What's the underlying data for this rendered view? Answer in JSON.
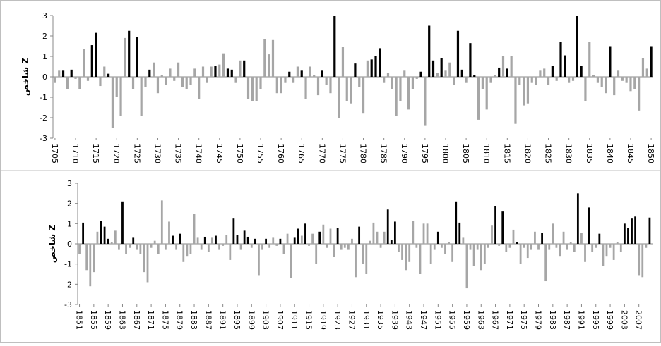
{
  "chart_data": [
    {
      "type": "bar",
      "ylabel": "شاخص Z",
      "x": [
        1705,
        1706,
        1707,
        1708,
        1709,
        1710,
        1711,
        1712,
        1713,
        1714,
        1715,
        1716,
        1717,
        1718,
        1719,
        1720,
        1721,
        1722,
        1723,
        1724,
        1725,
        1726,
        1727,
        1728,
        1729,
        1730,
        1731,
        1732,
        1733,
        1734,
        1735,
        1736,
        1737,
        1738,
        1739,
        1740,
        1741,
        1742,
        1743,
        1744,
        1745,
        1746,
        1747,
        1748,
        1749,
        1750,
        1751,
        1752,
        1753,
        1754,
        1755,
        1756,
        1757,
        1758,
        1759,
        1760,
        1761,
        1762,
        1763,
        1764,
        1765,
        1766,
        1767,
        1768,
        1769,
        1770,
        1771,
        1772,
        1773,
        1774,
        1775,
        1776,
        1777,
        1778,
        1779,
        1780,
        1781,
        1782,
        1783,
        1784,
        1785,
        1786,
        1787,
        1788,
        1789,
        1790,
        1791,
        1792,
        1793,
        1794,
        1795,
        1796,
        1797,
        1798,
        1799,
        1800,
        1801,
        1802,
        1803,
        1804,
        1805,
        1806,
        1807,
        1808,
        1809,
        1810,
        1811,
        1812,
        1813,
        1814,
        1815,
        1816,
        1817,
        1818,
        1819,
        1820,
        1821,
        1822,
        1823,
        1824,
        1825,
        1826,
        1827,
        1828,
        1829,
        1830,
        1831,
        1832,
        1833,
        1834,
        1835,
        1836,
        1837,
        1838,
        1839,
        1840,
        1841,
        1842,
        1843,
        1844,
        1845,
        1846,
        1847,
        1848,
        1849,
        1850
      ],
      "values": [
        -0.3,
        0.3,
        0.3,
        -0.6,
        0.35,
        -0.1,
        -0.6,
        1.35,
        -0.2,
        1.55,
        2.15,
        -0.45,
        0.5,
        0.15,
        -2.5,
        -1.0,
        -1.9,
        1.9,
        2.25,
        -0.6,
        1.95,
        -1.9,
        -0.5,
        0.35,
        0.7,
        -0.8,
        0.1,
        -0.4,
        0.4,
        -0.2,
        0.7,
        -0.5,
        -0.6,
        -0.4,
        0.4,
        -1.1,
        0.5,
        -0.3,
        0.5,
        0.55,
        0.6,
        1.15,
        0.4,
        0.35,
        -0.3,
        0.8,
        0.8,
        -1.1,
        -1.2,
        -1.2,
        -0.6,
        1.85,
        1.1,
        1.8,
        -0.8,
        -0.8,
        -0.3,
        0.25,
        -0.3,
        0.5,
        0.3,
        -1.1,
        0.5,
        0.1,
        -0.9,
        0.3,
        -0.4,
        -0.8,
        3.0,
        -2.0,
        1.45,
        -1.2,
        -1.3,
        0.65,
        -0.5,
        -1.8,
        0.8,
        0.85,
        1.0,
        1.4,
        -0.3,
        0.2,
        -0.6,
        -1.9,
        -1.2,
        0.3,
        -1.6,
        -0.6,
        -0.1,
        0.25,
        -2.4,
        2.5,
        0.8,
        0.2,
        0.9,
        0.3,
        0.7,
        -0.4,
        2.25,
        0.35,
        -0.3,
        1.65,
        0.1,
        -2.1,
        -0.6,
        -1.6,
        -0.3,
        0.1,
        0.45,
        1.0,
        0.4,
        1.0,
        -2.3,
        -0.4,
        -1.4,
        -1.3,
        -0.3,
        -0.4,
        0.3,
        0.4,
        -0.4,
        0.55,
        -0.2,
        1.7,
        1.05,
        -0.3,
        -0.2,
        3.0,
        0.55,
        -1.2,
        1.7,
        0.1,
        -0.3,
        -0.5,
        -0.8,
        1.5,
        -0.9,
        0.3,
        -0.2,
        -0.3,
        -0.7,
        -0.6,
        -1.65,
        0.9,
        0.4,
        1.5
      ],
      "colors": [
        "#a6a6a6",
        "#a6a6a6",
        "#000000",
        "#a6a6a6",
        "#000000",
        "#a6a6a6",
        "#a6a6a6",
        "#a6a6a6",
        "#a6a6a6",
        "#000000",
        "#000000",
        "#a6a6a6",
        "#a6a6a6",
        "#000000",
        "#a6a6a6",
        "#a6a6a6",
        "#a6a6a6",
        "#a6a6a6",
        "#000000",
        "#a6a6a6",
        "#000000",
        "#a6a6a6",
        "#a6a6a6",
        "#000000",
        "#a6a6a6",
        "#a6a6a6",
        "#a6a6a6",
        "#a6a6a6",
        "#a6a6a6",
        "#a6a6a6",
        "#a6a6a6",
        "#a6a6a6",
        "#a6a6a6",
        "#a6a6a6",
        "#a6a6a6",
        "#a6a6a6",
        "#a6a6a6",
        "#a6a6a6",
        "#a6a6a6",
        "#000000",
        "#a6a6a6",
        "#a6a6a6",
        "#000000",
        "#000000",
        "#a6a6a6",
        "#a6a6a6",
        "#000000",
        "#a6a6a6",
        "#a6a6a6",
        "#a6a6a6",
        "#a6a6a6",
        "#a6a6a6",
        "#a6a6a6",
        "#a6a6a6",
        "#a6a6a6",
        "#a6a6a6",
        "#a6a6a6",
        "#000000",
        "#a6a6a6",
        "#a6a6a6",
        "#000000",
        "#a6a6a6",
        "#a6a6a6",
        "#a6a6a6",
        "#a6a6a6",
        "#000000",
        "#a6a6a6",
        "#a6a6a6",
        "#000000",
        "#a6a6a6",
        "#a6a6a6",
        "#a6a6a6",
        "#a6a6a6",
        "#000000",
        "#a6a6a6",
        "#a6a6a6",
        "#a6a6a6",
        "#000000",
        "#000000",
        "#000000",
        "#a6a6a6",
        "#a6a6a6",
        "#a6a6a6",
        "#a6a6a6",
        "#a6a6a6",
        "#a6a6a6",
        "#a6a6a6",
        "#a6a6a6",
        "#a6a6a6",
        "#000000",
        "#a6a6a6",
        "#000000",
        "#000000",
        "#a6a6a6",
        "#000000",
        "#a6a6a6",
        "#a6a6a6",
        "#a6a6a6",
        "#000000",
        "#000000",
        "#a6a6a6",
        "#000000",
        "#000000",
        "#a6a6a6",
        "#a6a6a6",
        "#a6a6a6",
        "#a6a6a6",
        "#a6a6a6",
        "#000000",
        "#a6a6a6",
        "#000000",
        "#a6a6a6",
        "#a6a6a6",
        "#a6a6a6",
        "#a6a6a6",
        "#a6a6a6",
        "#a6a6a6",
        "#a6a6a6",
        "#a6a6a6",
        "#a6a6a6",
        "#a6a6a6",
        "#000000",
        "#a6a6a6",
        "#000000",
        "#000000",
        "#a6a6a6",
        "#a6a6a6",
        "#000000",
        "#000000",
        "#a6a6a6",
        "#a6a6a6",
        "#a6a6a6",
        "#a6a6a6",
        "#a6a6a6",
        "#a6a6a6",
        "#000000",
        "#a6a6a6",
        "#a6a6a6",
        "#a6a6a6",
        "#a6a6a6",
        "#a6a6a6",
        "#a6a6a6",
        "#a6a6a6",
        "#a6a6a6",
        "#a6a6a6",
        "#000000"
      ],
      "xlim": [
        1704.5,
        1850.5
      ],
      "xticks": [
        1705,
        1710,
        1715,
        1720,
        1725,
        1730,
        1735,
        1740,
        1745,
        1750,
        1755,
        1760,
        1765,
        1770,
        1775,
        1780,
        1785,
        1790,
        1795,
        1800,
        1805,
        1810,
        1815,
        1820,
        1825,
        1830,
        1835,
        1840,
        1845,
        1850
      ],
      "ylim": [
        -3,
        3
      ],
      "yticks": [
        -3,
        -2,
        -1,
        0,
        1,
        2,
        3
      ],
      "grid": false
    },
    {
      "type": "bar",
      "ylabel": "شاخص Z",
      "x": [
        1851,
        1852,
        1853,
        1854,
        1855,
        1856,
        1857,
        1858,
        1859,
        1860,
        1861,
        1862,
        1863,
        1864,
        1865,
        1866,
        1867,
        1868,
        1869,
        1870,
        1871,
        1872,
        1873,
        1874,
        1875,
        1876,
        1877,
        1878,
        1879,
        1880,
        1881,
        1882,
        1883,
        1884,
        1885,
        1886,
        1887,
        1888,
        1889,
        1890,
        1891,
        1892,
        1893,
        1894,
        1895,
        1896,
        1897,
        1898,
        1899,
        1900,
        1901,
        1902,
        1903,
        1904,
        1905,
        1906,
        1907,
        1908,
        1909,
        1910,
        1911,
        1912,
        1913,
        1914,
        1915,
        1916,
        1917,
        1918,
        1919,
        1920,
        1921,
        1922,
        1923,
        1924,
        1925,
        1926,
        1927,
        1928,
        1929,
        1930,
        1931,
        1932,
        1933,
        1934,
        1935,
        1936,
        1937,
        1938,
        1939,
        1940,
        1941,
        1942,
        1943,
        1944,
        1945,
        1946,
        1947,
        1948,
        1949,
        1950,
        1951,
        1952,
        1953,
        1954,
        1955,
        1956,
        1957,
        1958,
        1959,
        1960,
        1961,
        1962,
        1963,
        1964,
        1965,
        1966,
        1967,
        1968,
        1969,
        1970,
        1971,
        1972,
        1973,
        1974,
        1975,
        1976,
        1977,
        1978,
        1979,
        1980,
        1981,
        1982,
        1983,
        1984,
        1985,
        1986,
        1987,
        1988,
        1989,
        1990,
        1991,
        1992,
        1993,
        1994,
        1995,
        1996,
        1997,
        1998,
        1999,
        2000,
        2001,
        2002,
        2003,
        2004,
        2005,
        2006,
        2007,
        2008,
        2009,
        2010
      ],
      "values": [
        -0.5,
        1.05,
        -1.3,
        -2.1,
        -1.4,
        0.6,
        1.15,
        0.85,
        0.25,
        0.1,
        0.65,
        -0.3,
        2.1,
        -0.5,
        -0.2,
        0.3,
        -0.3,
        -0.5,
        -1.4,
        -1.9,
        -0.2,
        0.15,
        -0.5,
        2.15,
        -0.3,
        1.1,
        0.4,
        -0.3,
        0.5,
        -0.9,
        -0.6,
        -0.5,
        1.5,
        0.3,
        -0.3,
        0.35,
        -0.4,
        0.3,
        0.4,
        -0.3,
        -0.1,
        0.45,
        -0.8,
        1.25,
        0.45,
        -0.3,
        0.65,
        0.35,
        -0.2,
        0.25,
        -1.55,
        -0.3,
        0.25,
        -0.2,
        0.3,
        -0.1,
        0.25,
        -0.5,
        0.5,
        -1.7,
        0.3,
        0.75,
        0.4,
        1.0,
        -0.1,
        0.5,
        -1.0,
        0.6,
        0.95,
        -0.2,
        0.75,
        -0.65,
        0.8,
        -0.3,
        -0.2,
        -0.3,
        0.25,
        -1.65,
        0.85,
        -1.0,
        -1.5,
        0.15,
        1.05,
        0.6,
        -0.2,
        0.6,
        1.7,
        0.2,
        1.1,
        -0.4,
        -0.8,
        -1.3,
        -0.9,
        1.15,
        -0.2,
        -1.5,
        1.0,
        1.0,
        -1.0,
        -0.3,
        0.6,
        -0.2,
        -0.5,
        0.1,
        -0.9,
        2.1,
        1.05,
        0.3,
        -2.2,
        -0.3,
        -1.1,
        -0.3,
        -1.3,
        -1.0,
        -0.2,
        0.9,
        1.85,
        -0.1,
        1.6,
        -0.4,
        -0.2,
        0.7,
        0.1,
        -1.0,
        -0.2,
        -0.7,
        -0.3,
        0.6,
        -0.3,
        0.55,
        -1.85,
        -0.3,
        1.0,
        -0.2,
        -0.6,
        0.6,
        -0.3,
        0.1,
        -0.4,
        2.5,
        0.55,
        -0.9,
        1.8,
        -0.4,
        -0.2,
        0.5,
        -1.1,
        -0.6,
        -0.2,
        -0.8,
        0.1,
        -0.4,
        1.0,
        0.8,
        1.25,
        1.35,
        -1.55,
        -1.65,
        -0.2,
        1.3
      ],
      "colors": [
        "#a6a6a6",
        "#000000",
        "#a6a6a6",
        "#a6a6a6",
        "#a6a6a6",
        "#a6a6a6",
        "#000000",
        "#000000",
        "#000000",
        "#a6a6a6",
        "#a6a6a6",
        "#a6a6a6",
        "#000000",
        "#a6a6a6",
        "#a6a6a6",
        "#000000",
        "#a6a6a6",
        "#a6a6a6",
        "#a6a6a6",
        "#a6a6a6",
        "#a6a6a6",
        "#a6a6a6",
        "#a6a6a6",
        "#a6a6a6",
        "#a6a6a6",
        "#a6a6a6",
        "#000000",
        "#a6a6a6",
        "#000000",
        "#a6a6a6",
        "#a6a6a6",
        "#a6a6a6",
        "#a6a6a6",
        "#a6a6a6",
        "#a6a6a6",
        "#000000",
        "#a6a6a6",
        "#a6a6a6",
        "#000000",
        "#a6a6a6",
        "#a6a6a6",
        "#a6a6a6",
        "#a6a6a6",
        "#000000",
        "#000000",
        "#a6a6a6",
        "#000000",
        "#000000",
        "#a6a6a6",
        "#000000",
        "#a6a6a6",
        "#a6a6a6",
        "#000000",
        "#a6a6a6",
        "#a6a6a6",
        "#a6a6a6",
        "#000000",
        "#a6a6a6",
        "#a6a6a6",
        "#a6a6a6",
        "#000000",
        "#000000",
        "#a6a6a6",
        "#000000",
        "#a6a6a6",
        "#a6a6a6",
        "#a6a6a6",
        "#000000",
        "#a6a6a6",
        "#a6a6a6",
        "#a6a6a6",
        "#a6a6a6",
        "#000000",
        "#a6a6a6",
        "#a6a6a6",
        "#a6a6a6",
        "#a6a6a6",
        "#a6a6a6",
        "#000000",
        "#a6a6a6",
        "#a6a6a6",
        "#a6a6a6",
        "#a6a6a6",
        "#a6a6a6",
        "#a6a6a6",
        "#a6a6a6",
        "#000000",
        "#000000",
        "#000000",
        "#a6a6a6",
        "#a6a6a6",
        "#a6a6a6",
        "#a6a6a6",
        "#a6a6a6",
        "#a6a6a6",
        "#a6a6a6",
        "#a6a6a6",
        "#a6a6a6",
        "#a6a6a6",
        "#a6a6a6",
        "#000000",
        "#a6a6a6",
        "#a6a6a6",
        "#a6a6a6",
        "#a6a6a6",
        "#000000",
        "#000000",
        "#a6a6a6",
        "#a6a6a6",
        "#a6a6a6",
        "#a6a6a6",
        "#a6a6a6",
        "#a6a6a6",
        "#a6a6a6",
        "#a6a6a6",
        "#a6a6a6",
        "#000000",
        "#a6a6a6",
        "#000000",
        "#a6a6a6",
        "#a6a6a6",
        "#a6a6a6",
        "#000000",
        "#a6a6a6",
        "#a6a6a6",
        "#a6a6a6",
        "#a6a6a6",
        "#a6a6a6",
        "#a6a6a6",
        "#000000",
        "#a6a6a6",
        "#a6a6a6",
        "#a6a6a6",
        "#a6a6a6",
        "#a6a6a6",
        "#a6a6a6",
        "#a6a6a6",
        "#a6a6a6",
        "#a6a6a6",
        "#000000",
        "#a6a6a6",
        "#a6a6a6",
        "#000000",
        "#a6a6a6",
        "#a6a6a6",
        "#000000",
        "#a6a6a6",
        "#a6a6a6",
        "#a6a6a6",
        "#a6a6a6",
        "#a6a6a6",
        "#a6a6a6",
        "#000000",
        "#000000",
        "#000000",
        "#000000",
        "#a6a6a6",
        "#a6a6a6",
        "#a6a6a6",
        "#000000"
      ],
      "xlim": [
        1850.5,
        2011
      ],
      "xticks": [
        1851,
        1855,
        1859,
        1863,
        1867,
        1871,
        1875,
        1879,
        1883,
        1887,
        1891,
        1895,
        1899,
        1903,
        1907,
        1911,
        1915,
        1919,
        1923,
        1927,
        1931,
        1935,
        1939,
        1943,
        1947,
        1951,
        1955,
        1959,
        1963,
        1967,
        1971,
        1975,
        1979,
        1983,
        1987,
        1991,
        1995,
        1999,
        2003,
        2007
      ],
      "ylim": [
        -3,
        3
      ],
      "yticks": [
        -3,
        -2,
        -1,
        0,
        1,
        2,
        3
      ],
      "grid": false
    }
  ]
}
